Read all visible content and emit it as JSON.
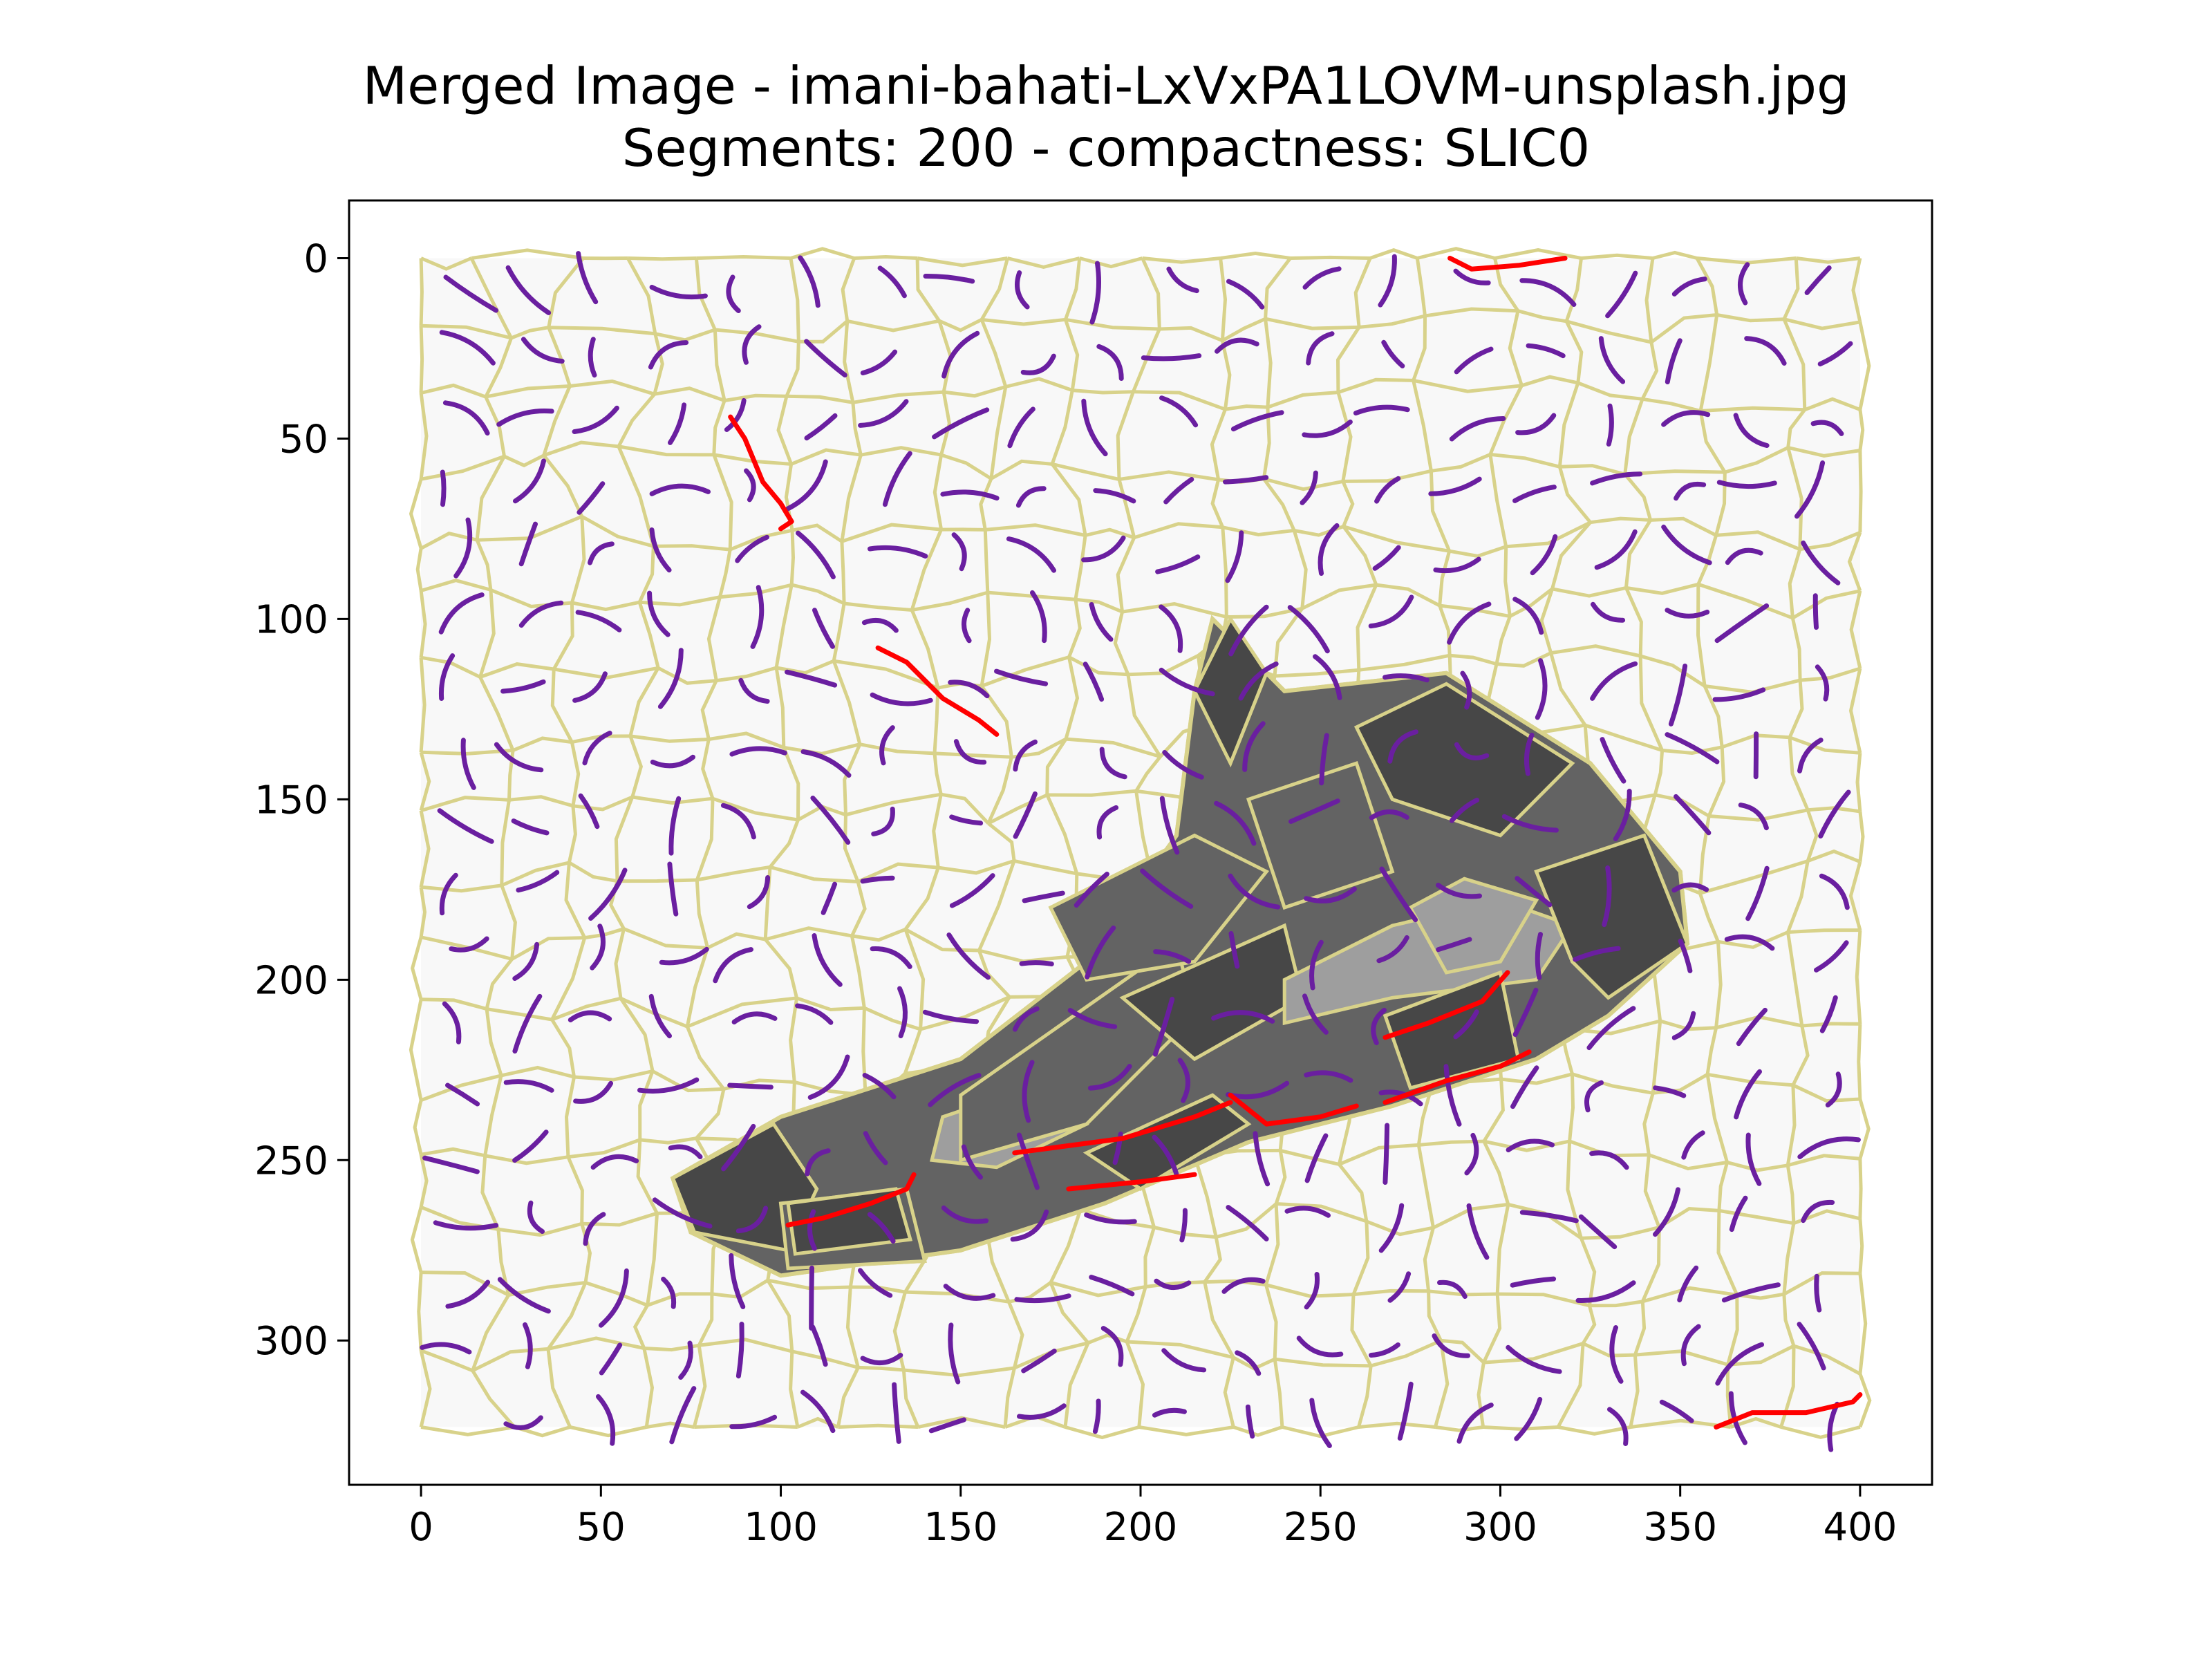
{
  "chart_data": {
    "type": "image",
    "title": "Merged Image - imani-bahati-LxVxPA1LOVM-unsplash.jpg",
    "subtitle": "Segments: 200 - compactness: SLIC0",
    "xlim": [
      -20,
      420
    ],
    "ylim": [
      340,
      -16
    ],
    "x_ticks": [
      0,
      50,
      100,
      150,
      200,
      250,
      300,
      350,
      400
    ],
    "y_ticks": [
      0,
      50,
      100,
      150,
      200,
      250,
      300
    ],
    "image_extent": {
      "x": [
        0,
        400
      ],
      "y": [
        0,
        324
      ]
    },
    "grid": false,
    "colors": {
      "background": "#f8f8f8",
      "boundary": "#d8d28a",
      "shoe_dark": "#474747",
      "shoe_mid": "#636363",
      "shoe_light": "#9e9e9e",
      "merged_line": "#6a1fa0",
      "highlight_line": "#ff0000"
    },
    "shoe_outline": [
      [
        70,
        255
      ],
      [
        100,
        238
      ],
      [
        150,
        222
      ],
      [
        185,
        195
      ],
      [
        210,
        160
      ],
      [
        215,
        120
      ],
      [
        220,
        100
      ],
      [
        240,
        120
      ],
      [
        285,
        115
      ],
      [
        325,
        140
      ],
      [
        350,
        170
      ],
      [
        352,
        190
      ],
      [
        330,
        210
      ],
      [
        310,
        222
      ],
      [
        270,
        235
      ],
      [
        230,
        245
      ],
      [
        190,
        262
      ],
      [
        150,
        275
      ],
      [
        100,
        282
      ],
      [
        75,
        270
      ]
    ],
    "shoe_regions": [
      {
        "shade": "dark",
        "points": [
          [
            70,
            255
          ],
          [
            98,
            240
          ],
          [
            110,
            258
          ],
          [
            102,
            275
          ],
          [
            76,
            270
          ]
        ]
      },
      {
        "shade": "mid",
        "points": [
          [
            100,
            262
          ],
          [
            135,
            258
          ],
          [
            140,
            278
          ],
          [
            102,
            280
          ]
        ]
      },
      {
        "shade": "dark",
        "points": [
          [
            102,
            262
          ],
          [
            132,
            258
          ],
          [
            136,
            272
          ],
          [
            104,
            276
          ]
        ]
      },
      {
        "shade": "light",
        "points": [
          [
            145,
            238
          ],
          [
            175,
            228
          ],
          [
            185,
            240
          ],
          [
            160,
            252
          ],
          [
            142,
            250
          ]
        ]
      },
      {
        "shade": "mid",
        "points": [
          [
            150,
            232
          ],
          [
            210,
            190
          ],
          [
            215,
            210
          ],
          [
            185,
            240
          ],
          [
            150,
            250
          ]
        ]
      },
      {
        "shade": "dark",
        "points": [
          [
            195,
            205
          ],
          [
            240,
            185
          ],
          [
            245,
            205
          ],
          [
            215,
            222
          ]
        ]
      },
      {
        "shade": "light",
        "points": [
          [
            240,
            200
          ],
          [
            270,
            185
          ],
          [
            300,
            178
          ],
          [
            320,
            185
          ],
          [
            310,
            200
          ],
          [
            270,
            205
          ],
          [
            240,
            212
          ]
        ]
      },
      {
        "shade": "dark",
        "points": [
          [
            215,
            120
          ],
          [
            225,
            100
          ],
          [
            235,
            115
          ],
          [
            225,
            140
          ]
        ]
      },
      {
        "shade": "dark",
        "points": [
          [
            260,
            130
          ],
          [
            285,
            118
          ],
          [
            320,
            140
          ],
          [
            300,
            160
          ],
          [
            270,
            150
          ]
        ]
      },
      {
        "shade": "mid",
        "points": [
          [
            230,
            150
          ],
          [
            260,
            140
          ],
          [
            270,
            170
          ],
          [
            240,
            180
          ]
        ]
      },
      {
        "shade": "dark",
        "points": [
          [
            310,
            170
          ],
          [
            340,
            160
          ],
          [
            352,
            190
          ],
          [
            330,
            205
          ],
          [
            320,
            195
          ]
        ]
      },
      {
        "shade": "dark",
        "points": [
          [
            268,
            210
          ],
          [
            300,
            198
          ],
          [
            305,
            222
          ],
          [
            275,
            230
          ]
        ]
      },
      {
        "shade": "mid",
        "points": [
          [
            175,
            180
          ],
          [
            215,
            160
          ],
          [
            235,
            170
          ],
          [
            215,
            195
          ],
          [
            185,
            200
          ]
        ]
      },
      {
        "shade": "light",
        "points": [
          [
            275,
            180
          ],
          [
            290,
            172
          ],
          [
            310,
            178
          ],
          [
            300,
            195
          ],
          [
            285,
            198
          ]
        ]
      },
      {
        "shade": "dark",
        "points": [
          [
            185,
            248
          ],
          [
            220,
            232
          ],
          [
            230,
            240
          ],
          [
            200,
            258
          ]
        ]
      }
    ],
    "highlighted_segments": [
      [
        [
          286,
          0
        ],
        [
          292,
          3
        ],
        [
          305,
          2
        ],
        [
          318,
          0
        ]
      ],
      [
        [
          86,
          44
        ],
        [
          90,
          50
        ],
        [
          95,
          62
        ],
        [
          100,
          68
        ],
        [
          103,
          73
        ],
        [
          100,
          75
        ]
      ],
      [
        [
          127,
          108
        ],
        [
          135,
          112
        ],
        [
          145,
          122
        ],
        [
          155,
          128
        ],
        [
          160,
          132
        ]
      ],
      [
        [
          102,
          268
        ],
        [
          112,
          266
        ],
        [
          125,
          262
        ],
        [
          135,
          258
        ],
        [
          137,
          254
        ]
      ],
      [
        [
          165,
          248
        ],
        [
          180,
          246
        ],
        [
          195,
          244
        ],
        [
          215,
          238
        ],
        [
          225,
          234
        ]
      ],
      [
        [
          180,
          258
        ],
        [
          200,
          256
        ],
        [
          215,
          254
        ]
      ],
      [
        [
          225,
          232
        ],
        [
          235,
          240
        ],
        [
          250,
          238
        ],
        [
          260,
          235
        ]
      ],
      [
        [
          268,
          234
        ],
        [
          285,
          228
        ],
        [
          300,
          224
        ],
        [
          308,
          220
        ]
      ],
      [
        [
          268,
          216
        ],
        [
          280,
          212
        ],
        [
          295,
          206
        ],
        [
          302,
          198
        ]
      ],
      [
        [
          360,
          324
        ],
        [
          370,
          320
        ],
        [
          385,
          320
        ],
        [
          398,
          317
        ],
        [
          400,
          315
        ]
      ]
    ]
  }
}
